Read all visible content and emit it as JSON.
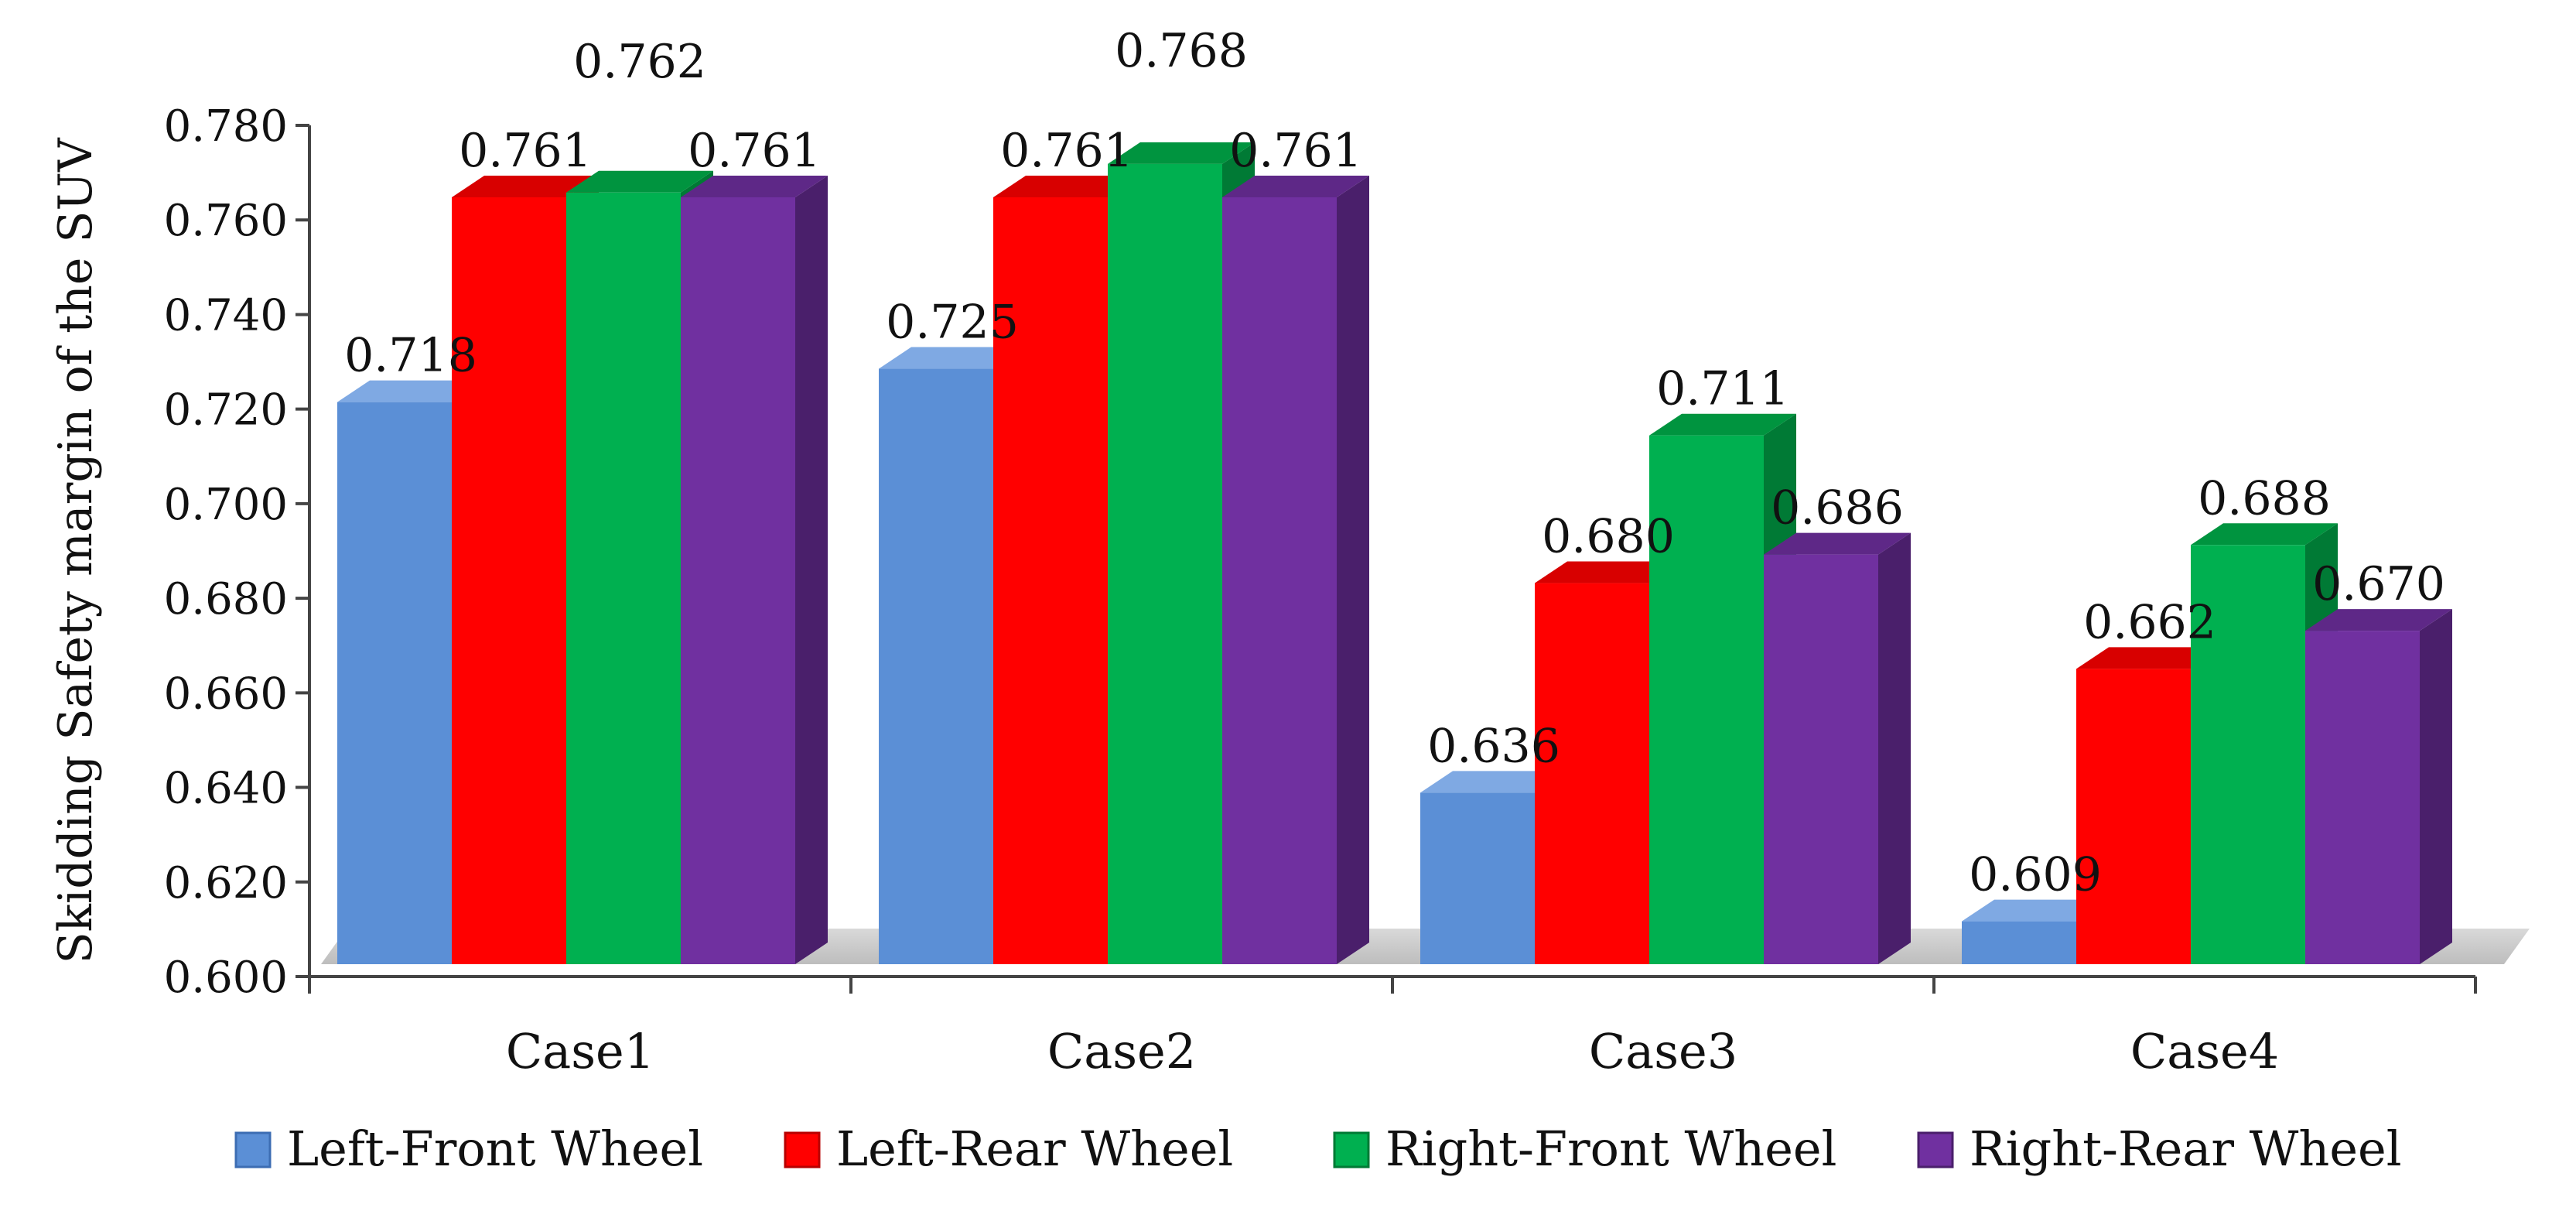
{
  "chart_data": {
    "type": "bar",
    "style": "3d-clustered",
    "title": "",
    "xlabel": "",
    "ylabel": "Skidding Safety margin of the SUV",
    "ylim": [
      0.6,
      0.78
    ],
    "yticks": [
      "0.600",
      "0.620",
      "0.640",
      "0.660",
      "0.680",
      "0.700",
      "0.720",
      "0.740",
      "0.760",
      "0.780"
    ],
    "ytick_values": [
      0.6,
      0.62,
      0.64,
      0.66,
      0.68,
      0.7,
      0.72,
      0.74,
      0.76,
      0.78
    ],
    "categories": [
      "Case1",
      "Case2",
      "Case3",
      "Case4"
    ],
    "series": [
      {
        "name": "Left-Front Wheel",
        "color": "#5B8FD6",
        "side": "#3C6DB3",
        "top": "#7FA9E3",
        "values": [
          0.718,
          0.725,
          0.636,
          0.609
        ],
        "labels": [
          "0.718",
          "0.725",
          "0.636",
          "0.609"
        ]
      },
      {
        "name": "Left-Rear Wheel",
        "color": "#FF0000",
        "side": "#B80000",
        "top": "#D80000",
        "values": [
          0.761,
          0.761,
          0.68,
          0.662
        ],
        "labels": [
          "0.761",
          "0.761",
          "0.680",
          "0.662"
        ]
      },
      {
        "name": "Right-Front Wheel",
        "color": "#00B050",
        "side": "#007A35",
        "top": "#00943F",
        "values": [
          0.762,
          0.768,
          0.711,
          0.688
        ],
        "labels": [
          "0.762",
          "0.768",
          "0.711",
          "0.688"
        ]
      },
      {
        "name": "Right-Rear Wheel",
        "color": "#7030A0",
        "side": "#4A1F6B",
        "top": "#5E2887",
        "values": [
          0.761,
          0.761,
          0.686,
          0.67
        ],
        "labels": [
          "0.761",
          "0.761",
          "0.686",
          "0.670"
        ]
      }
    ],
    "legend_position": "bottom",
    "grid": false
  }
}
